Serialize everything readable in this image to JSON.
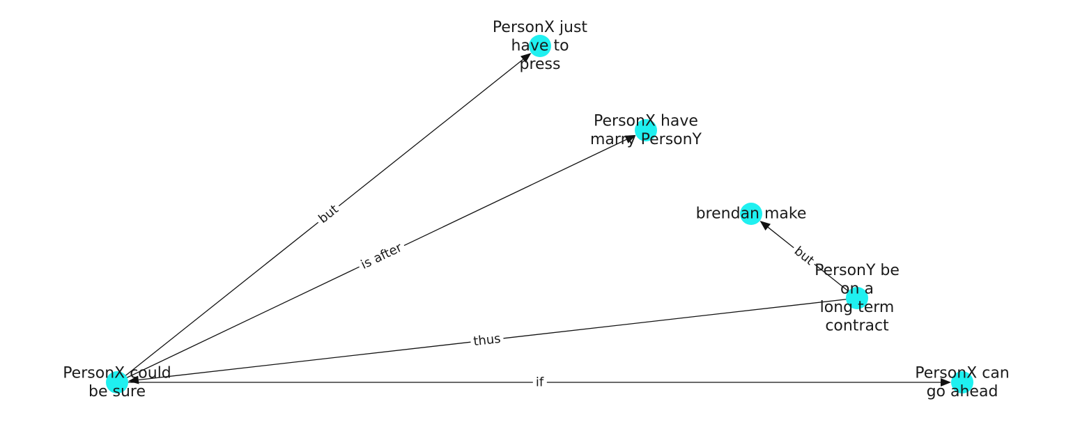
{
  "graph": {
    "node_color": "#1ff0f0",
    "edge_color": "#111111",
    "nodes": [
      {
        "id": "n_sure",
        "lines": [
          "PersonX could",
          "be sure"
        ]
      },
      {
        "id": "n_press",
        "lines": [
          "PersonX just",
          "have to",
          "press"
        ]
      },
      {
        "id": "n_marry",
        "lines": [
          "PersonX have",
          "marry PersonY"
        ]
      },
      {
        "id": "n_brendan",
        "lines": [
          "brendan make"
        ]
      },
      {
        "id": "n_contract",
        "lines": [
          "PersonY be",
          "on a",
          "long term",
          "contract"
        ]
      },
      {
        "id": "n_ahead",
        "lines": [
          "PersonX can",
          "go ahead"
        ]
      }
    ],
    "edges": [
      {
        "from": "n_sure",
        "to": "n_press",
        "label": "but"
      },
      {
        "from": "n_sure",
        "to": "n_marry",
        "label": "is after"
      },
      {
        "from": "n_contract",
        "to": "n_brendan",
        "label": "but"
      },
      {
        "from": "n_contract",
        "to": "n_sure",
        "label": "thus"
      },
      {
        "from": "n_sure",
        "to": "n_ahead",
        "label": "if"
      }
    ]
  }
}
